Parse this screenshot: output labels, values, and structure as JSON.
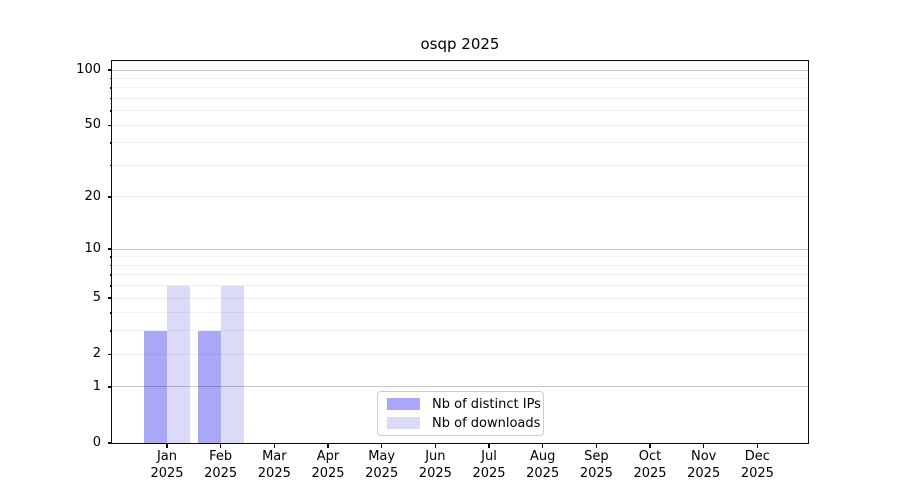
{
  "chart_data": {
    "type": "bar",
    "title": "osqp 2025",
    "categories": [
      {
        "month": "Jan",
        "year": "2025"
      },
      {
        "month": "Feb",
        "year": "2025"
      },
      {
        "month": "Mar",
        "year": "2025"
      },
      {
        "month": "Apr",
        "year": "2025"
      },
      {
        "month": "May",
        "year": "2025"
      },
      {
        "month": "Jun",
        "year": "2025"
      },
      {
        "month": "Jul",
        "year": "2025"
      },
      {
        "month": "Aug",
        "year": "2025"
      },
      {
        "month": "Sep",
        "year": "2025"
      },
      {
        "month": "Oct",
        "year": "2025"
      },
      {
        "month": "Nov",
        "year": "2025"
      },
      {
        "month": "Dec",
        "year": "2025"
      }
    ],
    "series": [
      {
        "name": "Nb of distinct IPs",
        "key": "distinct-ips",
        "color": "#a9a8f7",
        "values": [
          3,
          3,
          0,
          0,
          0,
          0,
          0,
          0,
          0,
          0,
          0,
          0
        ]
      },
      {
        "name": "Nb of downloads",
        "key": "downloads",
        "color": "#dbdaf9",
        "values": [
          6,
          6,
          0,
          0,
          0,
          0,
          0,
          0,
          0,
          0,
          0,
          0
        ]
      }
    ],
    "y_axis": {
      "scale": "log10(1+v)",
      "ticks": [
        {
          "v": 100,
          "label": "100"
        },
        {
          "v": 50,
          "label": "50"
        },
        {
          "v": 20,
          "label": "20"
        },
        {
          "v": 10,
          "label": "10"
        },
        {
          "v": 5,
          "label": "5"
        },
        {
          "v": 2,
          "label": "2"
        },
        {
          "v": 1,
          "label": "1"
        },
        {
          "v": 0,
          "label": "0"
        }
      ],
      "major_gridlines": [
        1,
        10,
        100
      ],
      "minor_gridlines": [
        2,
        3,
        4,
        5,
        6,
        7,
        8,
        9,
        20,
        30,
        40,
        50,
        60,
        70,
        80,
        90
      ],
      "max": 113
    },
    "legend": {
      "position": "lower-center"
    },
    "colors": {
      "major_grid": "rgba(0,0,0,0.22)",
      "minor_grid": "rgba(0,0,0,0.06)",
      "axis": "#0a0a0a",
      "background": "#ffffff"
    }
  }
}
